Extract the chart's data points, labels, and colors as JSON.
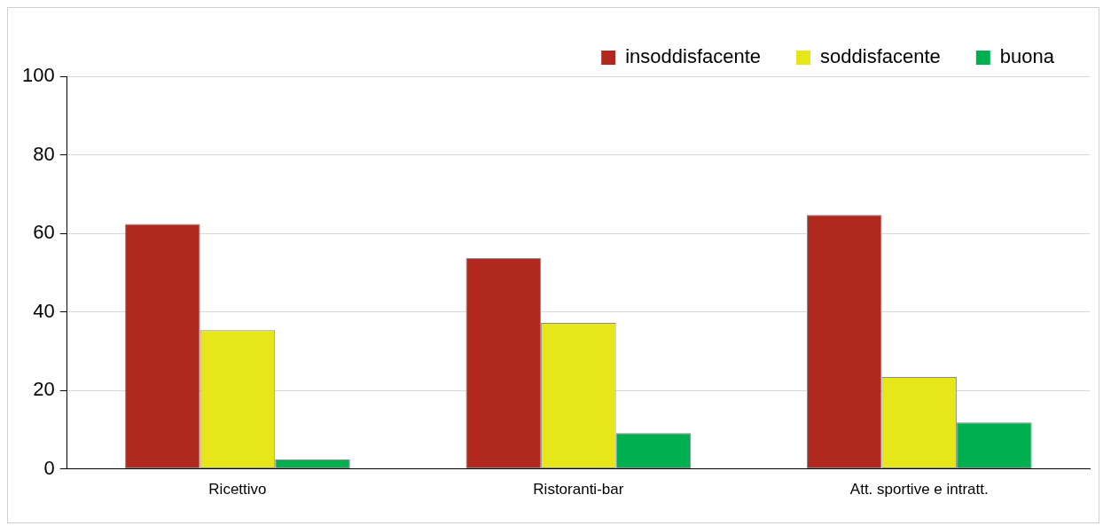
{
  "chart_data": {
    "type": "bar",
    "categories": [
      "Ricettivo",
      "Ristoranti-bar",
      "Att. sportive e intratt."
    ],
    "series": [
      {
        "name": "insoddisfacente",
        "color": "#b0281e",
        "values": [
          62.4,
          53.7,
          64.7
        ]
      },
      {
        "name": "soddisfacente",
        "color": "#e6e619",
        "values": [
          35.3,
          37.2,
          23.4
        ]
      },
      {
        "name": "buona",
        "color": "#00b050",
        "values": [
          2.4,
          9.1,
          11.8
        ]
      }
    ],
    "ylim": [
      0,
      100
    ],
    "yticks": [
      0,
      20,
      40,
      60,
      80,
      100
    ],
    "grid": "y",
    "legend": "top right"
  }
}
